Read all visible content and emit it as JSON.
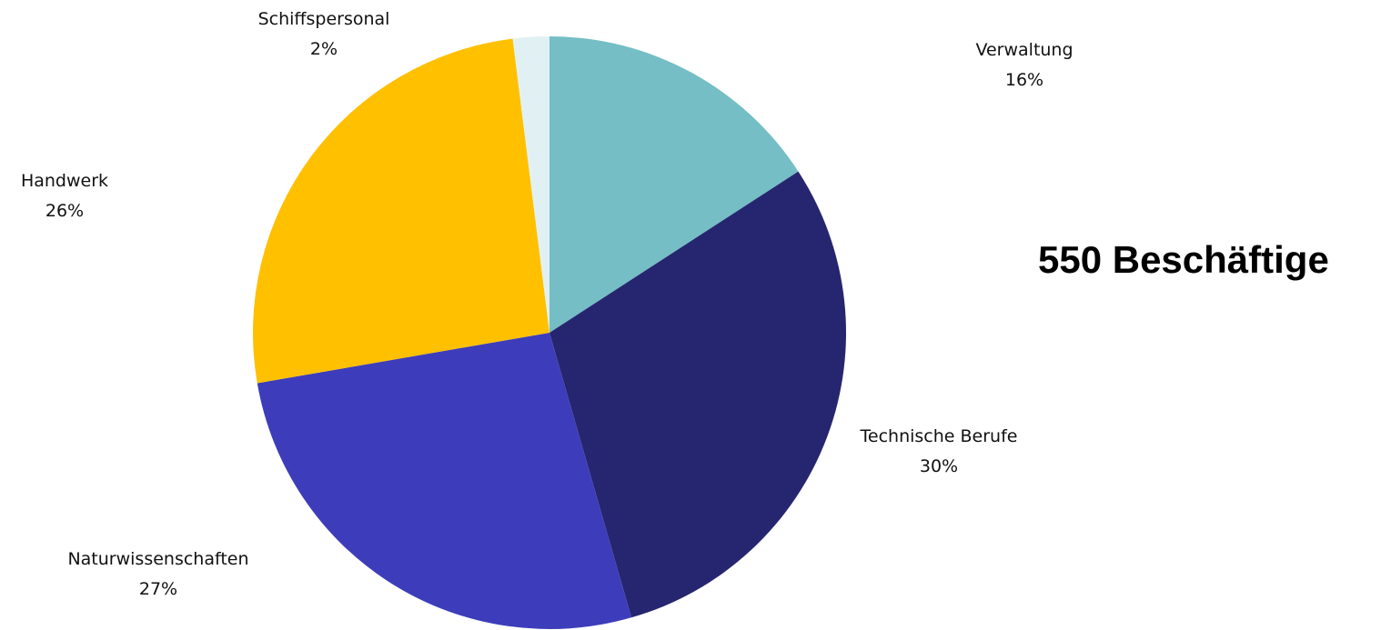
{
  "headline": "550 Beschäftige",
  "chart_data": {
    "type": "pie",
    "start_angle_deg": 0,
    "direction": "clockwise",
    "slices": [
      {
        "name": "Verwaltung",
        "value": 16,
        "label": "16%",
        "color": "#75BEC5"
      },
      {
        "name": "Technische Berufe",
        "value": 30,
        "label": "30%",
        "color": "#262670"
      },
      {
        "name": "Naturwissenschaften",
        "value": 27,
        "label": "27%",
        "color": "#3D3DBB"
      },
      {
        "name": "Handwerk",
        "value": 26,
        "label": "26%",
        "color": "#FFC000"
      },
      {
        "name": "Schiffspersonal",
        "value": 2,
        "label": "2%",
        "color": "#E1F1F3"
      }
    ]
  }
}
